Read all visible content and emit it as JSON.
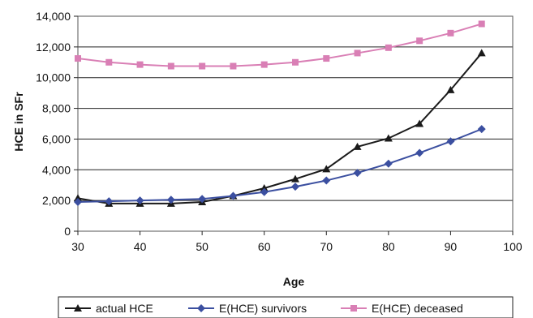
{
  "chart_data": {
    "type": "line",
    "title": "",
    "xlabel": "Age",
    "ylabel": "HCE in SFr",
    "xlim": [
      30,
      100
    ],
    "ylim": [
      0,
      14000
    ],
    "x_ticks": [
      "30",
      "40",
      "50",
      "60",
      "70",
      "80",
      "90",
      "100"
    ],
    "y_ticks": [
      "0",
      "2,000",
      "4,000",
      "6,000",
      "8,000",
      "10,000",
      "12,000",
      "14,000"
    ],
    "grid": true,
    "legend_position": "bottom",
    "x": [
      30,
      35,
      40,
      45,
      50,
      55,
      60,
      65,
      70,
      75,
      80,
      85,
      90,
      95
    ],
    "series": [
      {
        "name": "actual HCE",
        "color": "#1a1a1a",
        "marker": "triangle",
        "values": [
          2150,
          1800,
          1800,
          1800,
          1900,
          2300,
          2800,
          3400,
          4050,
          5500,
          6050,
          7000,
          9200,
          11600
        ]
      },
      {
        "name": "E(HCE) survivors",
        "color": "#3b4fa0",
        "marker": "diamond",
        "values": [
          1900,
          1950,
          2000,
          2050,
          2100,
          2300,
          2550,
          2900,
          3300,
          3800,
          4400,
          5100,
          5850,
          6650
        ]
      },
      {
        "name": "E(HCE) deceased",
        "color": "#d97fb5",
        "marker": "square",
        "values": [
          11250,
          11000,
          10850,
          10750,
          10750,
          10750,
          10850,
          11000,
          11250,
          11600,
          11950,
          12400,
          12900,
          13500
        ]
      }
    ]
  }
}
